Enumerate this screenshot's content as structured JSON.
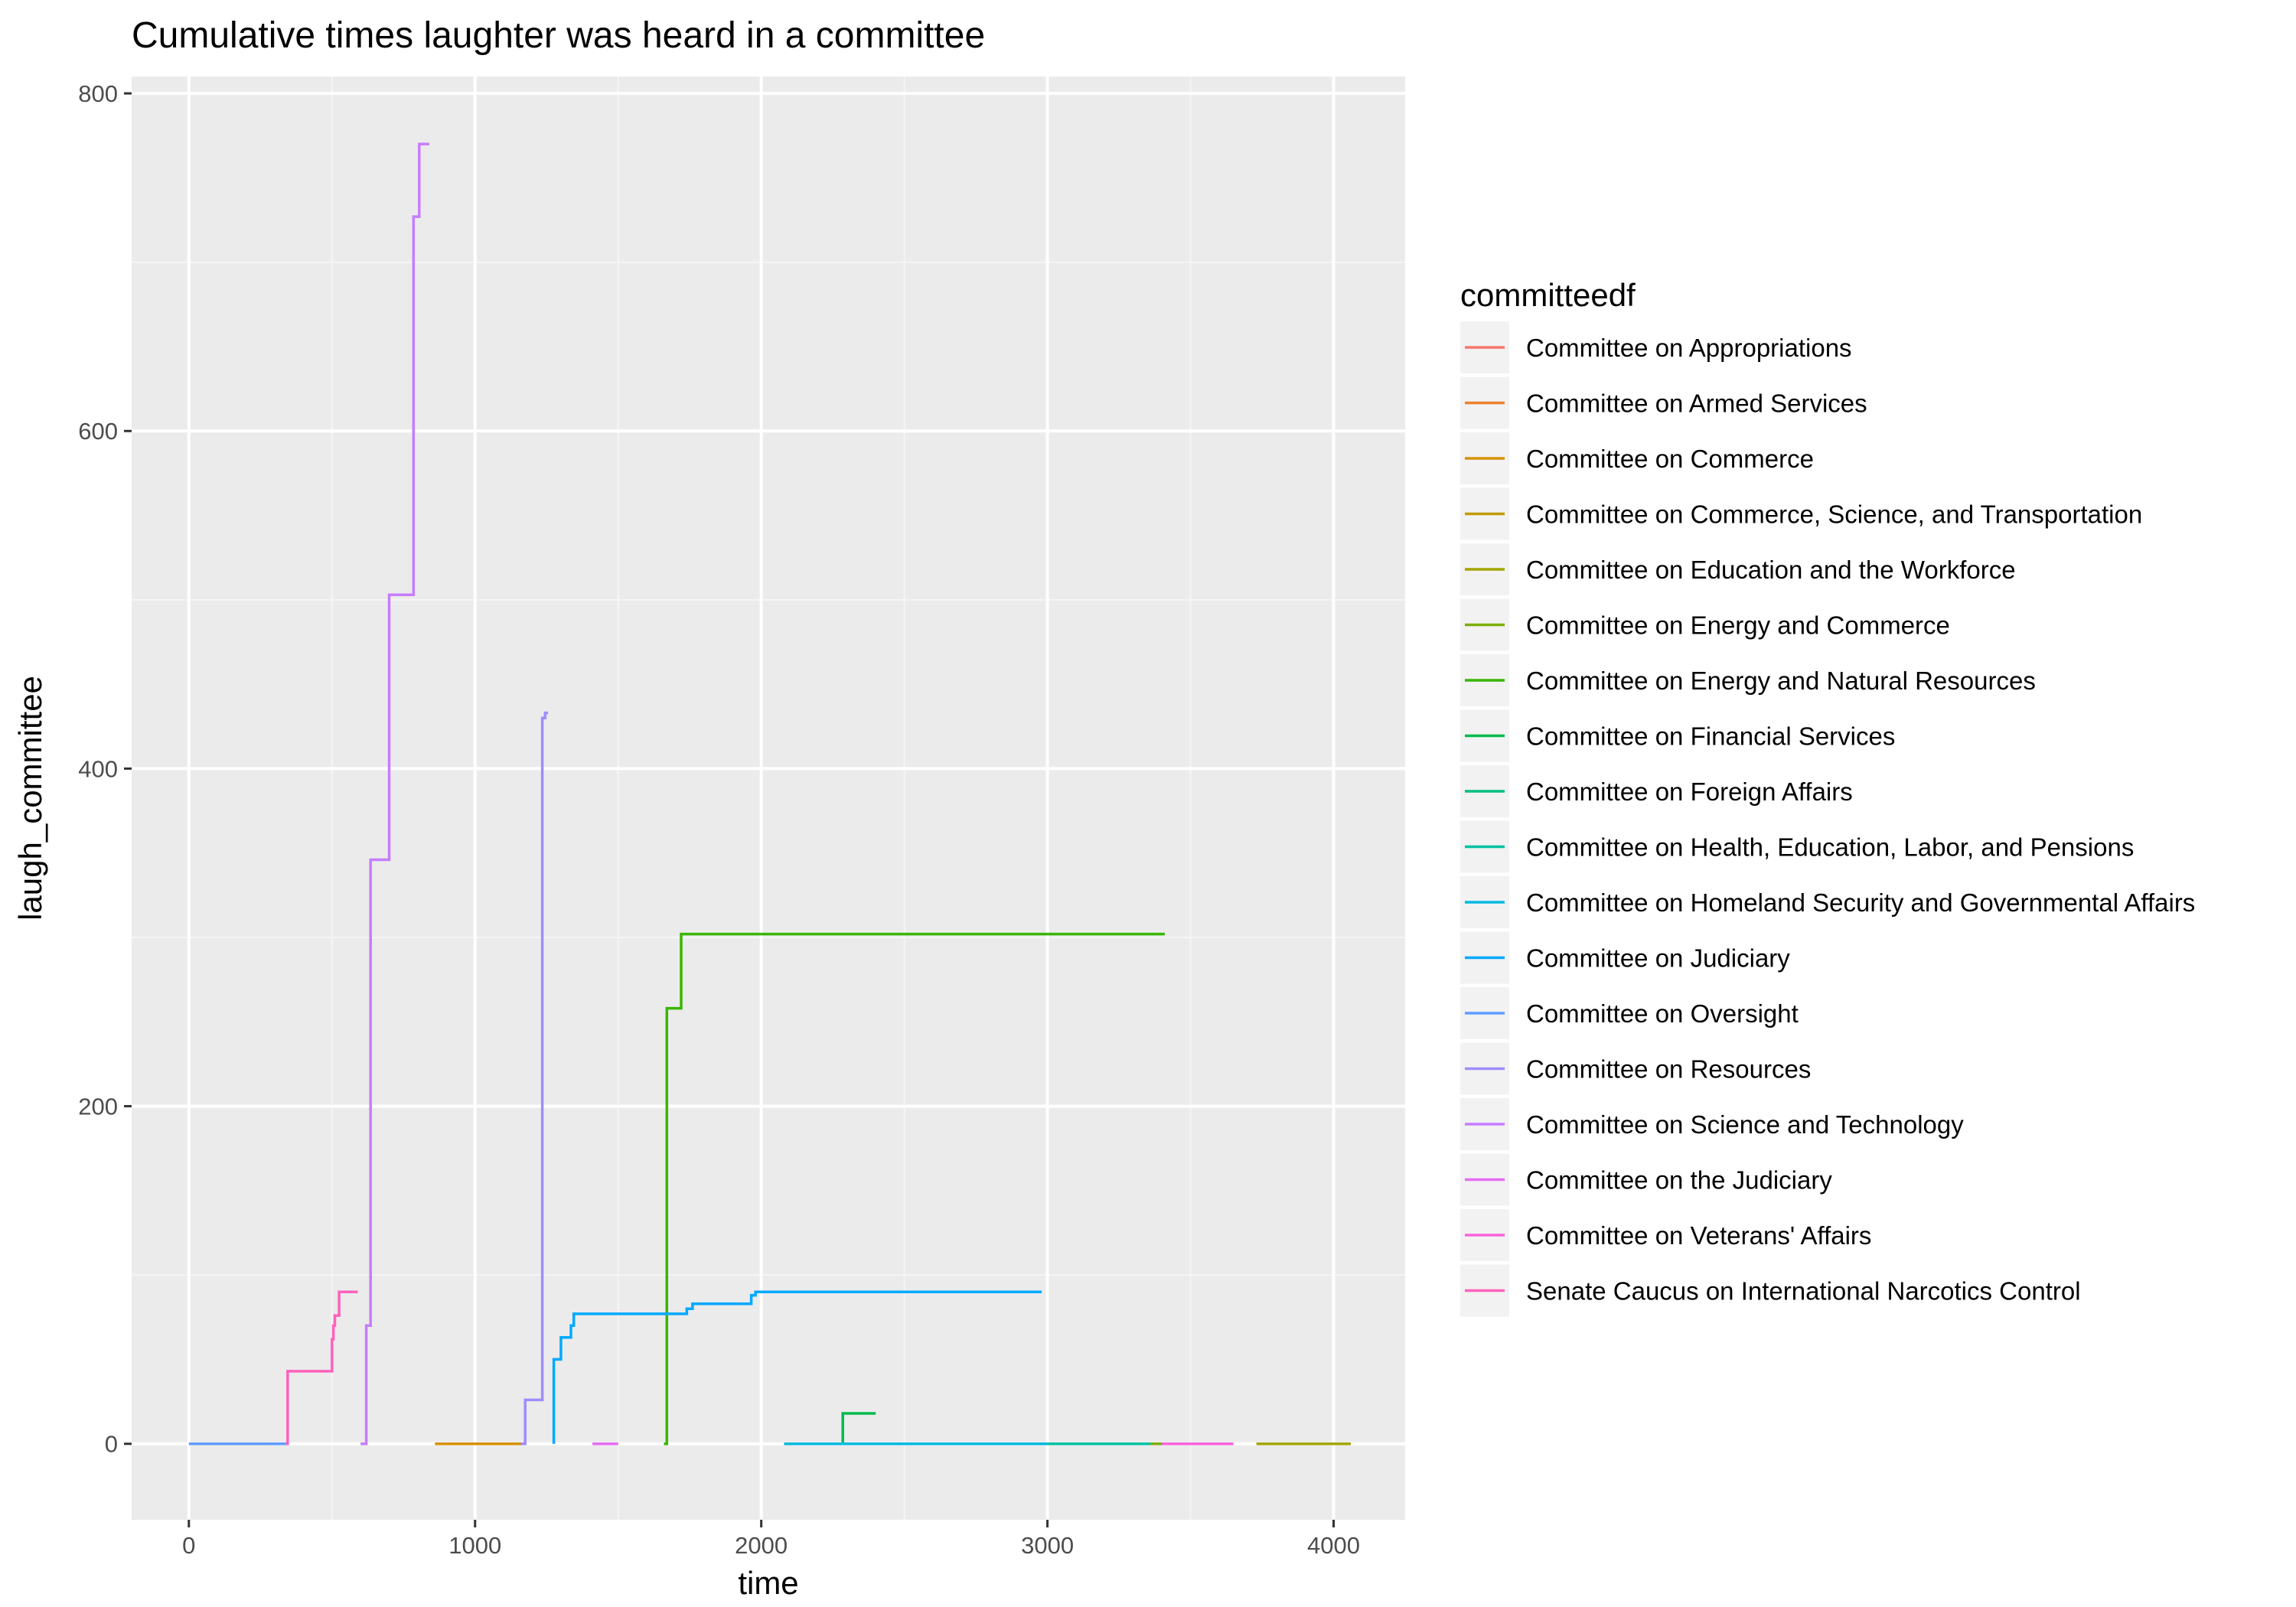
{
  "chart_data": {
    "type": "line",
    "title": "Cumulative times laughter was heard in a committee",
    "xlabel": "time",
    "ylabel": "laugh_committee",
    "xlim": [
      -200,
      4250
    ],
    "ylim": [
      -45,
      810
    ],
    "x_ticks": [
      0,
      1000,
      2000,
      3000,
      4000
    ],
    "y_ticks": [
      0,
      200,
      400,
      600,
      800
    ],
    "x_tick_labels": [
      "0",
      "1000",
      "2000",
      "3000",
      "4000"
    ],
    "y_tick_labels": [
      "0",
      "200",
      "400",
      "600",
      "800"
    ],
    "grid": true,
    "legend_title": "committeedf",
    "legend_position": "right",
    "series": [
      {
        "name": "Committee on Appropriations",
        "color": "#F8766D",
        "points": []
      },
      {
        "name": "Committee on Armed Services",
        "color": "#EA8331",
        "points": []
      },
      {
        "name": "Committee on Commerce",
        "color": "#D89000",
        "points": [
          [
            860,
            0
          ],
          [
            1160,
            0
          ]
        ]
      },
      {
        "name": "Committee on Commerce, Science, and Transportation",
        "color": "#C09B00",
        "points": [
          [
            3420,
            0
          ],
          [
            3560,
            0
          ]
        ]
      },
      {
        "name": "Committee on Education and the Workforce",
        "color": "#A3A500",
        "points": [
          [
            3730,
            0
          ],
          [
            4060,
            0
          ]
        ]
      },
      {
        "name": "Committee on Energy and Commerce",
        "color": "#7CAE00",
        "points": [
          [
            3360,
            0
          ],
          [
            3440,
            0
          ]
        ]
      },
      {
        "name": "Committee on Energy and Natural Resources",
        "color": "#39B600",
        "points": [
          [
            1660,
            0
          ],
          [
            1670,
            0
          ],
          [
            1670,
            258
          ],
          [
            1720,
            258
          ],
          [
            1720,
            302
          ],
          [
            3410,
            302
          ]
        ]
      },
      {
        "name": "Committee on Financial Services",
        "color": "#00BB4E",
        "points": [
          [
            2080,
            0
          ],
          [
            2285,
            0
          ],
          [
            2285,
            18
          ],
          [
            2400,
            18
          ]
        ]
      },
      {
        "name": "Committee on Foreign Affairs",
        "color": "#00BF7D",
        "points": [
          [
            2280,
            0
          ],
          [
            2720,
            0
          ]
        ]
      },
      {
        "name": "Committee on Health, Education, Labor, and Pensions",
        "color": "#00C1A3",
        "points": [
          [
            2820,
            0
          ],
          [
            3360,
            0
          ]
        ]
      },
      {
        "name": "Committee on Homeland Security and Governmental Affairs",
        "color": "#00BAE0",
        "points": [
          [
            2080,
            0
          ],
          [
            3000,
            0
          ]
        ]
      },
      {
        "name": "Committee on Judiciary",
        "color": "#00A9FF",
        "points": [
          [
            1275,
            0
          ],
          [
            1275,
            50
          ],
          [
            1300,
            50
          ],
          [
            1300,
            63
          ],
          [
            1335,
            63
          ],
          [
            1335,
            70
          ],
          [
            1345,
            70
          ],
          [
            1345,
            77
          ],
          [
            1740,
            77
          ],
          [
            1740,
            80
          ],
          [
            1760,
            80
          ],
          [
            1760,
            83
          ],
          [
            1965,
            83
          ],
          [
            1965,
            88
          ],
          [
            1980,
            88
          ],
          [
            1980,
            90
          ],
          [
            2980,
            90
          ]
        ]
      },
      {
        "name": "Committee on Oversight",
        "color": "#619CFF",
        "points": [
          [
            0,
            0
          ],
          [
            340,
            0
          ]
        ]
      },
      {
        "name": "Committee on Resources",
        "color": "#9F8CFF",
        "points": [
          [
            1160,
            0
          ],
          [
            1175,
            0
          ],
          [
            1175,
            26
          ],
          [
            1235,
            26
          ],
          [
            1235,
            430
          ],
          [
            1245,
            430
          ],
          [
            1245,
            433
          ],
          [
            1255,
            433
          ]
        ]
      },
      {
        "name": "Committee on Science and Technology",
        "color": "#C77CFF",
        "points": [
          [
            600,
            0
          ],
          [
            620,
            0
          ],
          [
            620,
            70
          ],
          [
            635,
            70
          ],
          [
            635,
            346
          ],
          [
            700,
            346
          ],
          [
            700,
            503
          ],
          [
            785,
            503
          ],
          [
            785,
            727
          ],
          [
            805,
            727
          ],
          [
            805,
            770
          ],
          [
            840,
            770
          ]
        ]
      },
      {
        "name": "Committee on the Judiciary",
        "color": "#E76BF3",
        "points": [
          [
            1410,
            0
          ],
          [
            1500,
            0
          ]
        ]
      },
      {
        "name": "Committee on Veterans' Affairs",
        "color": "#FA62DB",
        "points": [
          [
            3400,
            0
          ],
          [
            3650,
            0
          ]
        ]
      },
      {
        "name": "Senate Caucus on International Narcotics Control",
        "color": "#FF62BC",
        "points": [
          [
            340,
            0
          ],
          [
            345,
            0
          ],
          [
            345,
            43
          ],
          [
            500,
            43
          ],
          [
            500,
            62
          ],
          [
            505,
            62
          ],
          [
            505,
            70
          ],
          [
            510,
            70
          ],
          [
            510,
            76
          ],
          [
            525,
            76
          ],
          [
            525,
            90
          ],
          [
            590,
            90
          ]
        ]
      }
    ]
  }
}
